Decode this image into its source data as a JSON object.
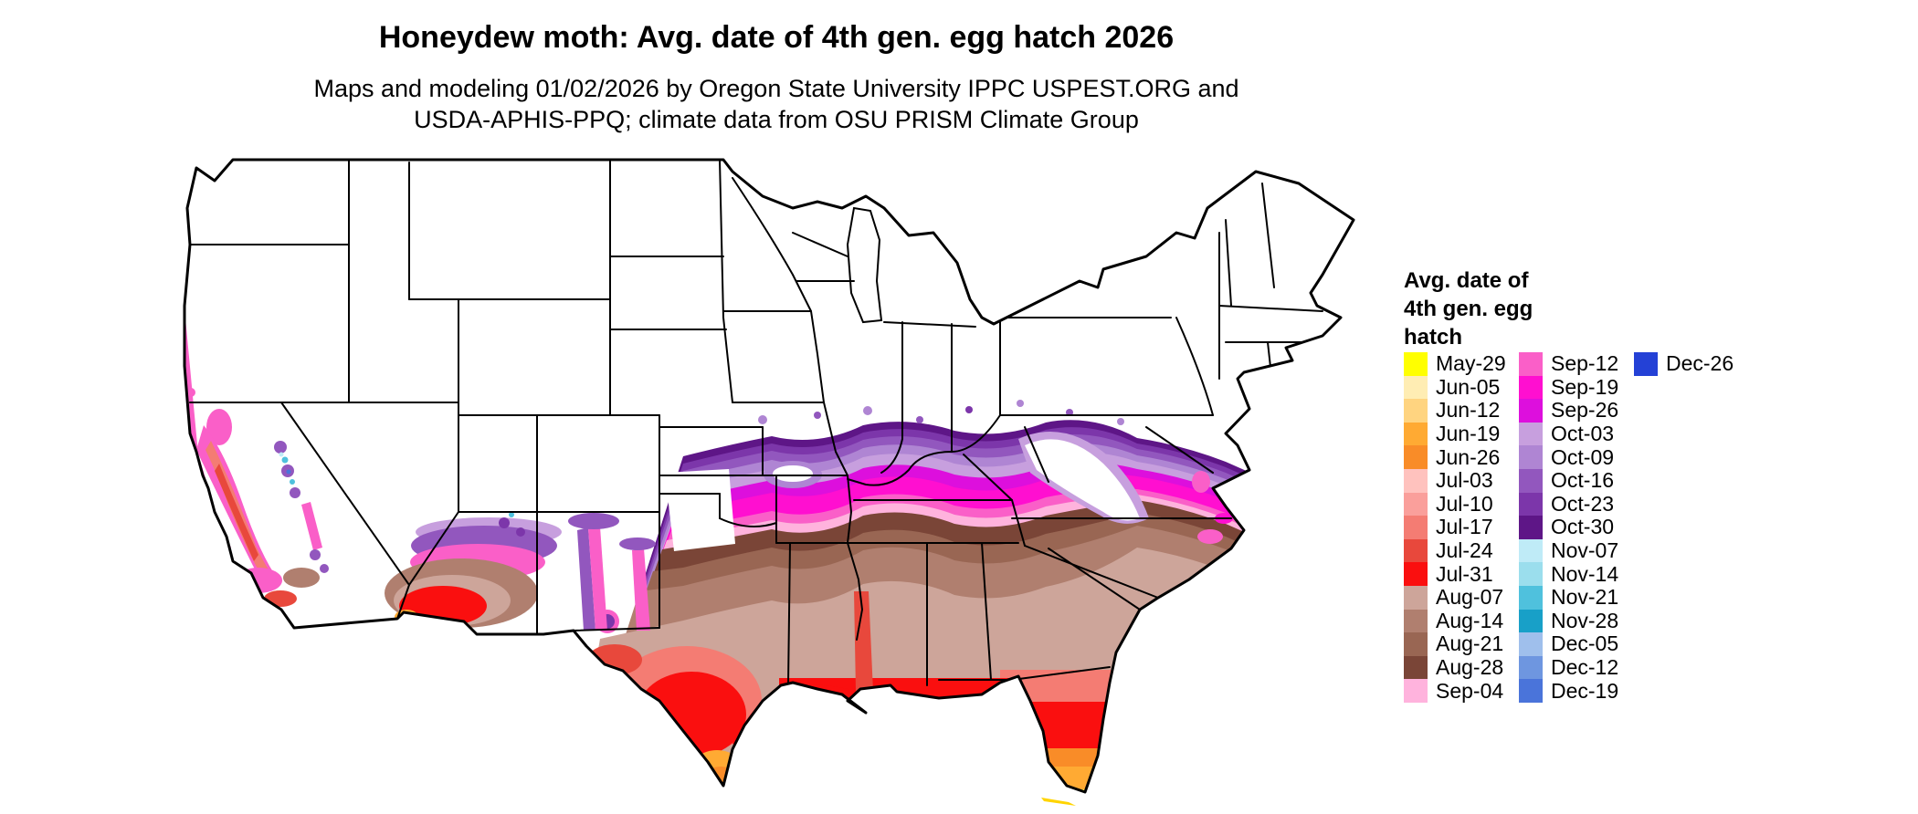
{
  "title": "Honeydew moth: Avg. date of 4th gen. egg hatch 2026",
  "subtitle_line1": "Maps and modeling 01/02/2026 by Oregon State University IPPC USPEST.ORG and",
  "subtitle_line2": "USDA-APHIS-PPQ; climate data from OSU PRISM Climate Group",
  "legend": {
    "title_lines": [
      "Avg. date of",
      "4th gen. egg",
      "hatch"
    ],
    "columns": [
      [
        {
          "label": "May-29",
          "color": "#FFFF00"
        },
        {
          "label": "Jun-05",
          "color": "#FFEDB3"
        },
        {
          "label": "Jun-12",
          "color": "#FFD480"
        },
        {
          "label": "Jun-19",
          "color": "#FFAA33"
        },
        {
          "label": "Jun-26",
          "color": "#F98C28"
        },
        {
          "label": "Jul-03",
          "color": "#FFC2BE"
        },
        {
          "label": "Jul-10",
          "color": "#FA9F9B"
        },
        {
          "label": "Jul-17",
          "color": "#F47C73"
        },
        {
          "label": "Jul-24",
          "color": "#E8483C"
        },
        {
          "label": "Jul-31",
          "color": "#FA0F0F"
        },
        {
          "label": "Aug-07",
          "color": "#CDA59A"
        },
        {
          "label": "Aug-14",
          "color": "#B07F6F"
        },
        {
          "label": "Aug-21",
          "color": "#996653"
        },
        {
          "label": "Aug-28",
          "color": "#7A4537"
        },
        {
          "label": "Sep-04",
          "color": "#FFB3DD"
        }
      ],
      [
        {
          "label": "Sep-12",
          "color": "#FA5FC8"
        },
        {
          "label": "Sep-19",
          "color": "#FF0FD0"
        },
        {
          "label": "Sep-26",
          "color": "#DD0FDD"
        },
        {
          "label": "Oct-03",
          "color": "#C79FDE"
        },
        {
          "label": "Oct-09",
          "color": "#AF85D3"
        },
        {
          "label": "Oct-16",
          "color": "#9257BE"
        },
        {
          "label": "Oct-23",
          "color": "#7C36AA"
        },
        {
          "label": "Oct-30",
          "color": "#5E1687"
        },
        {
          "label": "Nov-07",
          "color": "#BFEBF7"
        },
        {
          "label": "Nov-14",
          "color": "#9BDEED"
        },
        {
          "label": "Nov-21",
          "color": "#4FC1DD"
        },
        {
          "label": "Nov-28",
          "color": "#18A0C8"
        },
        {
          "label": "Dec-05",
          "color": "#9FBFEC"
        },
        {
          "label": "Dec-12",
          "color": "#6E96E0"
        },
        {
          "label": "Dec-19",
          "color": "#4A74DA"
        }
      ],
      [
        {
          "label": "Dec-26",
          "color": "#2441D6"
        }
      ]
    ]
  }
}
